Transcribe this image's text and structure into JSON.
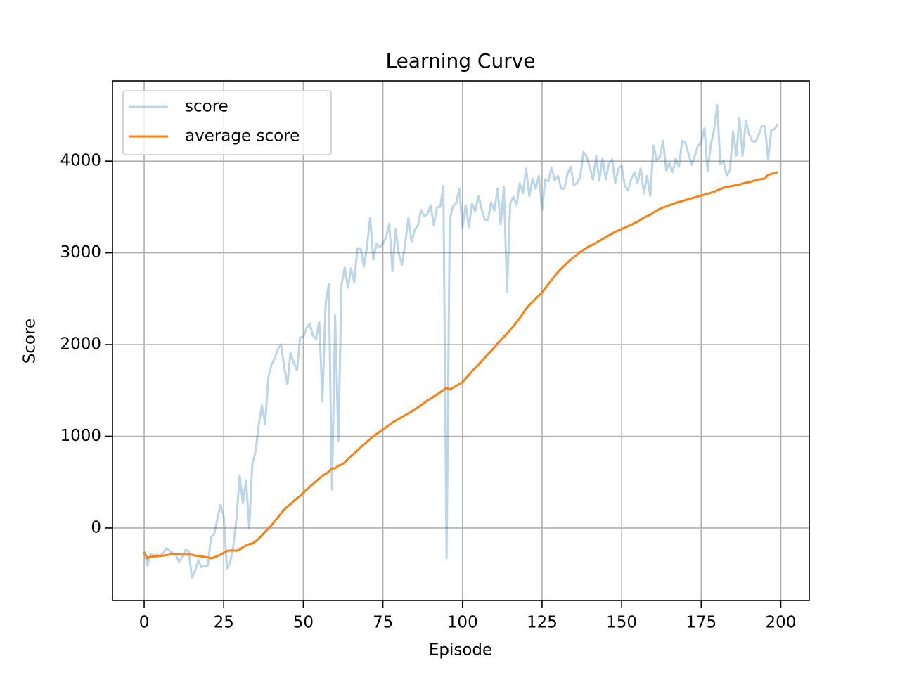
{
  "chart_data": {
    "type": "line",
    "title": "Learning Curve",
    "xlabel": "Episode",
    "ylabel": "Score",
    "x": [
      0,
      1,
      2,
      3,
      4,
      5,
      6,
      7,
      8,
      9,
      10,
      11,
      12,
      13,
      14,
      15,
      16,
      17,
      18,
      19,
      20,
      21,
      22,
      23,
      24,
      25,
      26,
      27,
      28,
      29,
      30,
      31,
      32,
      33,
      34,
      35,
      36,
      37,
      38,
      39,
      40,
      41,
      42,
      43,
      44,
      45,
      46,
      47,
      48,
      49,
      50,
      51,
      52,
      53,
      54,
      55,
      56,
      57,
      58,
      59,
      60,
      61,
      62,
      63,
      64,
      65,
      66,
      67,
      68,
      69,
      70,
      71,
      72,
      73,
      74,
      75,
      76,
      77,
      78,
      79,
      80,
      81,
      82,
      83,
      84,
      85,
      86,
      87,
      88,
      89,
      90,
      91,
      92,
      93,
      94,
      95,
      96,
      97,
      98,
      99,
      100,
      101,
      102,
      103,
      104,
      105,
      106,
      107,
      108,
      109,
      110,
      111,
      112,
      113,
      114,
      115,
      116,
      117,
      118,
      119,
      120,
      121,
      122,
      123,
      124,
      125,
      126,
      127,
      128,
      129,
      130,
      131,
      132,
      133,
      134,
      135,
      136,
      137,
      138,
      139,
      140,
      141,
      142,
      143,
      144,
      145,
      146,
      147,
      148,
      149,
      150,
      151,
      152,
      153,
      154,
      155,
      156,
      157,
      158,
      159,
      160,
      161,
      162,
      163,
      164,
      165,
      166,
      167,
      168,
      169,
      170,
      171,
      172,
      173,
      174,
      175,
      176,
      177,
      178,
      179,
      180,
      181,
      182,
      183,
      184,
      185,
      186,
      187,
      188,
      189,
      190,
      191,
      192,
      193,
      194,
      195,
      196,
      197,
      198,
      199
    ],
    "series": [
      {
        "name": "score",
        "color": "#1f77b4",
        "alpha": 0.3,
        "values": [
          -260,
          -410,
          -280,
          -300,
          -290,
          -300,
          -270,
          -220,
          -250,
          -270,
          -300,
          -370,
          -310,
          -240,
          -250,
          -540,
          -470,
          -350,
          -430,
          -410,
          -410,
          -100,
          -70,
          100,
          250,
          120,
          -440,
          -380,
          -200,
          100,
          570,
          270,
          520,
          0,
          700,
          830,
          1130,
          1340,
          1130,
          1640,
          1780,
          1850,
          1950,
          2000,
          1750,
          1570,
          1910,
          1800,
          1720,
          2080,
          2080,
          2180,
          2230,
          2100,
          2060,
          2250,
          1380,
          2450,
          2660,
          420,
          2320,
          950,
          2650,
          2840,
          2620,
          2830,
          2680,
          3050,
          3050,
          2850,
          3070,
          3380,
          2930,
          3100,
          3060,
          3100,
          3170,
          3320,
          2800,
          3260,
          2990,
          2870,
          3100,
          3380,
          3120,
          3250,
          3300,
          3470,
          3400,
          3420,
          3520,
          3300,
          3500,
          3500,
          3730,
          -330,
          3360,
          3510,
          3540,
          3700,
          3270,
          3520,
          3280,
          3540,
          3450,
          3620,
          3480,
          3360,
          3360,
          3550,
          3460,
          3700,
          3310,
          3720,
          2580,
          3540,
          3610,
          3520,
          3760,
          3650,
          3920,
          3620,
          3810,
          3700,
          3840,
          3470,
          3800,
          3780,
          3930,
          3790,
          3840,
          3700,
          3700,
          3860,
          3940,
          3740,
          3760,
          3830,
          4100,
          4050,
          3930,
          3800,
          4060,
          3790,
          4030,
          3800,
          3970,
          4020,
          3760,
          3920,
          3950,
          3730,
          3680,
          3800,
          3880,
          3760,
          3920,
          3650,
          3840,
          3620,
          4170,
          4010,
          4050,
          4220,
          3900,
          3980,
          3880,
          4030,
          3940,
          4220,
          4200,
          4080,
          3960,
          4060,
          4170,
          4200,
          4360,
          3890,
          4180,
          4330,
          4610,
          3970,
          4000,
          3840,
          3900,
          4320,
          4060,
          4470,
          4060,
          4440,
          4300,
          4220,
          4210,
          4280,
          4380,
          4380,
          4020,
          4330,
          4350,
          4400
        ]
      },
      {
        "name": "average score",
        "color": "#ff7f0e",
        "alpha": 1,
        "values": [
          -260,
          -330,
          -315,
          -310,
          -308,
          -305,
          -300,
          -295,
          -290,
          -285,
          -285,
          -288,
          -290,
          -290,
          -290,
          -290,
          -300,
          -305,
          -310,
          -315,
          -320,
          -330,
          -320,
          -305,
          -290,
          -270,
          -250,
          -245,
          -245,
          -248,
          -235,
          -210,
          -190,
          -175,
          -170,
          -145,
          -115,
          -80,
          -40,
          -5,
          30,
          75,
          115,
          160,
          200,
          235,
          260,
          295,
          325,
          350,
          385,
          415,
          450,
          480,
          510,
          540,
          570,
          590,
          615,
          650,
          650,
          680,
          690,
          715,
          750,
          785,
          815,
          845,
          880,
          910,
          940,
          970,
          1000,
          1025,
          1050,
          1075,
          1100,
          1125,
          1150,
          1170,
          1190,
          1210,
          1230,
          1250,
          1270,
          1295,
          1315,
          1340,
          1365,
          1390,
          1410,
          1435,
          1455,
          1480,
          1505,
          1530,
          1510,
          1530,
          1550,
          1570,
          1590,
          1630,
          1670,
          1710,
          1745,
          1780,
          1820,
          1855,
          1895,
          1930,
          1970,
          2010,
          2050,
          2085,
          2120,
          2160,
          2200,
          2245,
          2290,
          2340,
          2390,
          2430,
          2465,
          2500,
          2535,
          2570,
          2615,
          2660,
          2705,
          2750,
          2790,
          2825,
          2860,
          2895,
          2925,
          2955,
          2980,
          3010,
          3035,
          3055,
          3075,
          3090,
          3110,
          3130,
          3150,
          3170,
          3190,
          3210,
          3230,
          3245,
          3260,
          3275,
          3290,
          3305,
          3325,
          3340,
          3360,
          3385,
          3400,
          3415,
          3440,
          3460,
          3480,
          3495,
          3505,
          3520,
          3530,
          3545,
          3555,
          3565,
          3575,
          3585,
          3595,
          3605,
          3615,
          3625,
          3635,
          3645,
          3655,
          3665,
          3680,
          3695,
          3710,
          3720,
          3725,
          3730,
          3740,
          3745,
          3755,
          3765,
          3770,
          3780,
          3790,
          3800,
          3805,
          3810,
          3850,
          3860,
          3870,
          3880
        ]
      }
    ],
    "xlim": [
      -9.95,
      208.95
    ],
    "ylim": [
      -790,
      4875
    ],
    "xticks": [
      0,
      25,
      50,
      75,
      100,
      125,
      150,
      175,
      200
    ],
    "yticks": [
      0,
      1000,
      2000,
      3000,
      4000
    ],
    "grid": true,
    "legend": "upper left"
  }
}
